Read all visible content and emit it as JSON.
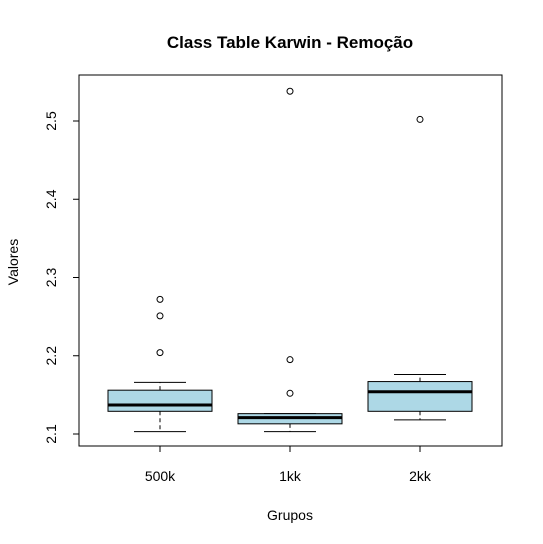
{
  "chart_data": {
    "type": "boxplot",
    "title": "Class Table Karwin - Remoção",
    "xlabel": "Grupos",
    "ylabel": "Valores",
    "categories": [
      "500k",
      "1kk",
      "2kk"
    ],
    "yticks": [
      "2.1",
      "2.2",
      "2.3",
      "2.4",
      "2.5"
    ],
    "ytick_values": [
      2.1,
      2.2,
      2.3,
      2.4,
      2.5
    ],
    "ylim": [
      2.085,
      2.55
    ],
    "box_color": "#add8e6",
    "boxes": [
      {
        "category": "500k",
        "whisker_low": 2.103,
        "q1": 2.129,
        "median": 2.137,
        "q3": 2.156,
        "whisker_high": 2.166,
        "outliers": [
          2.204,
          2.251,
          2.272
        ]
      },
      {
        "category": "1kk",
        "whisker_low": 2.103,
        "q1": 2.113,
        "median": 2.121,
        "q3": 2.126,
        "whisker_high": 2.126,
        "outliers": [
          2.152,
          2.195,
          2.538
        ]
      },
      {
        "category": "2kk",
        "whisker_low": 2.118,
        "q1": 2.129,
        "median": 2.154,
        "q3": 2.167,
        "whisker_high": 2.176,
        "outliers": [
          2.502
        ]
      }
    ]
  }
}
